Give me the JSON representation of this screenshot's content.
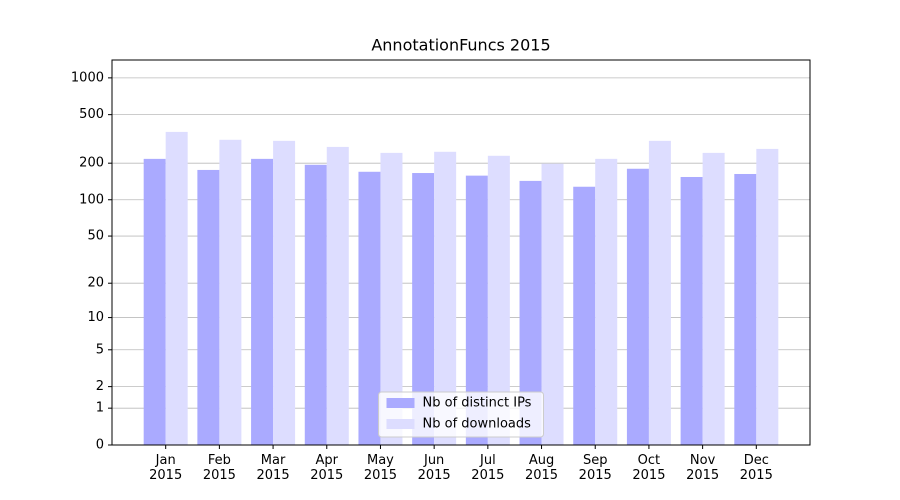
{
  "chart_data": {
    "type": "bar",
    "title": "AnnotationFuncs 2015",
    "categories": [
      "Jan 2015",
      "Feb 2015",
      "Mar 2015",
      "Apr 2015",
      "May 2015",
      "Jun 2015",
      "Jul 2015",
      "Aug 2015",
      "Sep 2015",
      "Oct 2015",
      "Nov 2015",
      "Dec 2015"
    ],
    "series": [
      {
        "name": "Nb of distinct IPs",
        "color": "#aaaaff",
        "values": [
          217,
          176,
          217,
          194,
          170,
          166,
          158,
          143,
          128,
          180,
          154,
          163
        ]
      },
      {
        "name": "Nb of downloads",
        "color": "#ddddff",
        "values": [
          361,
          311,
          305,
          272,
          243,
          248,
          230,
          198,
          217,
          305,
          243,
          262
        ]
      }
    ],
    "yscale": "log1p",
    "ylim": [
      0,
      1400
    ],
    "yticks": [
      0,
      1,
      2,
      5,
      10,
      20,
      50,
      100,
      200,
      500,
      1000
    ],
    "grid": true,
    "legend": "lower center"
  }
}
